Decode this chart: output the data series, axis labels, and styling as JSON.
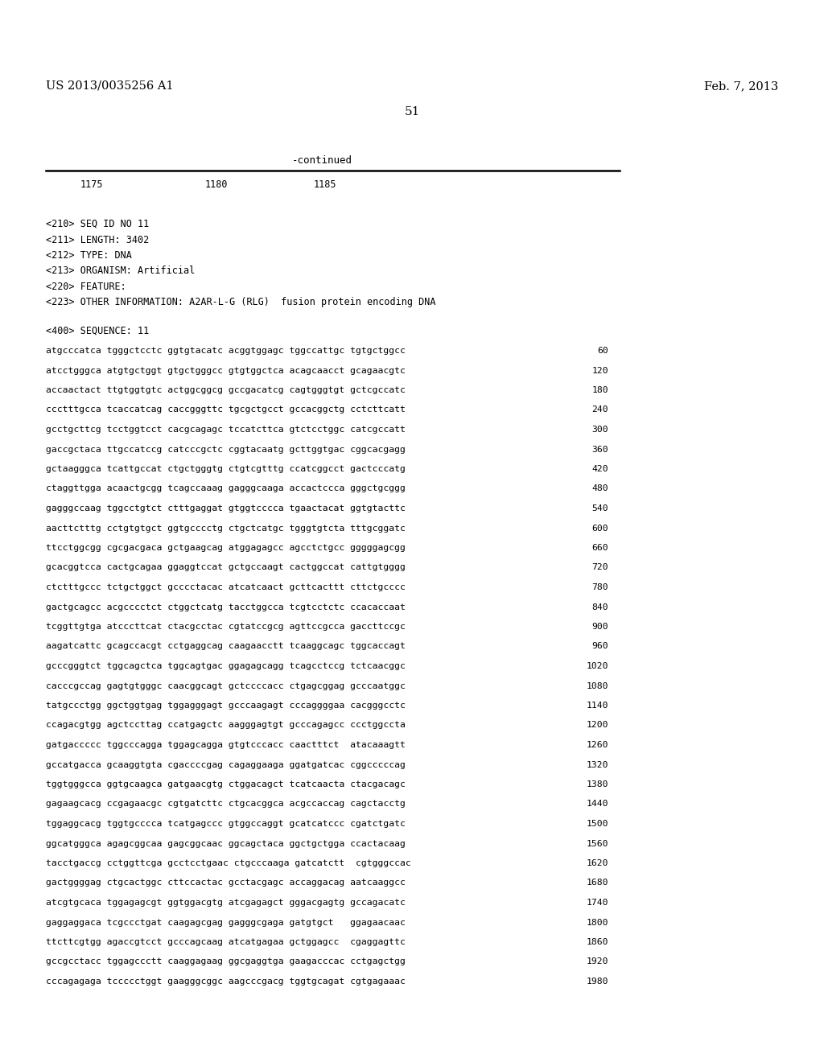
{
  "background_color": "#ffffff",
  "top_left_text": "US 2013/0035256 A1",
  "top_right_text": "Feb. 7, 2013",
  "page_number": "51",
  "continued_label": "-continued",
  "ruler_numbers": [
    "1175",
    "1180",
    "1185"
  ],
  "metadata_lines": [
    "<210> SEQ ID NO 11",
    "<211> LENGTH: 3402",
    "<212> TYPE: DNA",
    "<213> ORGANISM: Artificial",
    "<220> FEATURE:",
    "<223> OTHER INFORMATION: A2AR-L-G (RLG)  fusion protein encoding DNA"
  ],
  "sequence_label": "<400> SEQUENCE: 11",
  "sequence_lines": [
    [
      "atgcccatca tgggctcctc ggtgtacatc acggtggagc tggccattgc tgtgctggcc",
      "60"
    ],
    [
      "atcctgggca atgtgctggt gtgctgggcc gtgtggctca acagcaacct gcagaacgtc",
      "120"
    ],
    [
      "accaactact ttgtggtgtc actggcggcg gccgacatcg cagtgggtgt gctcgccatc",
      "180"
    ],
    [
      "ccctttgcca tcaccatcag caccgggttc tgcgctgcct gccacggctg cctcttcatt",
      "240"
    ],
    [
      "gcctgcttcg tcctggtcct cacgcagagc tccatcttca gtctcctggc catcgccatt",
      "300"
    ],
    [
      "gaccgctaca ttgccatccg catcccgctc cggtacaatg gcttggtgac cggcacgagg",
      "360"
    ],
    [
      "gctaagggca tcattgccat ctgctgggtg ctgtcgtttg ccatcggcct gactcccatg",
      "420"
    ],
    [
      "ctaggttgga acaactgcgg tcagccaaag gagggcaaga accactccca gggctgcggg",
      "480"
    ],
    [
      "gagggccaag tggcctgtct ctttgaggat gtggtcccca tgaactacat ggtgtacttc",
      "540"
    ],
    [
      "aacttctttg cctgtgtgct ggtgcccctg ctgctcatgc tgggtgtcta tttgcggatc",
      "600"
    ],
    [
      "ttcctggcgg cgcgacgaca gctgaagcag atggagagcc agcctctgcc gggggagcgg",
      "660"
    ],
    [
      "gcacggtcca cactgcagaa ggaggtccat gctgccaagt cactggccat cattgtgggg",
      "720"
    ],
    [
      "ctctttgccc tctgctggct gcccctacac atcatcaact gcttcacttt cttctgcccc",
      "780"
    ],
    [
      "gactgcagcc acgcccctct ctggctcatg tacctggcca tcgtcctctc ccacaccaat",
      "840"
    ],
    [
      "tcggttgtga atcccttcat ctacgcctac cgtatccgcg agttccgcca gaccttccgc",
      "900"
    ],
    [
      "aagatcattc gcagccacgt cctgaggcag caagaacctt tcaaggcagc tggcaccagt",
      "960"
    ],
    [
      "gcccgggtct tggcagctca tggcagtgac ggagagcagg tcagcctccg tctcaacggc",
      "1020"
    ],
    [
      "cacccgccag gagtgtgggc caacggcagt gctccccacc ctgagcggag gcccaatggc",
      "1080"
    ],
    [
      "tatgccctgg ggctggtgag tggagggagt gcccaagagt cccaggggaa cacgggcctc",
      "1140"
    ],
    [
      "ccagacgtgg agctccttag ccatgagctc aagggagtgt gcccagagcc ccctggccta",
      "1200"
    ],
    [
      "gatgaccccc tggcccagga tggagcagga gtgtcccacc caactttct  atacaaagtt",
      "1260"
    ],
    [
      "gccatgacca gcaaggtgta cgaccccgag cagaggaaga ggatgatcac cggcccccag",
      "1320"
    ],
    [
      "tggtgggcca ggtgcaagca gatgaacgtg ctggacagct tcatcaacta ctacgacagc",
      "1380"
    ],
    [
      "gagaagcacg ccgagaacgc cgtgatcttc ctgcacggca acgccaccag cagctacctg",
      "1440"
    ],
    [
      "tggaggcacg tggtgcccca tcatgagccc gtggccaggt gcatcatccc cgatctgatc",
      "1500"
    ],
    [
      "ggcatgggca agagcggcaa gagcggcaac ggcagctaca ggctgctgga ccactacaag",
      "1560"
    ],
    [
      "tacctgaccg cctggttcga gcctcctgaac ctgcccaaga gatcatctt  cgtgggccac",
      "1620"
    ],
    [
      "gactggggag ctgcactggc cttccactac gcctacgagc accaggacag aatcaaggcc",
      "1680"
    ],
    [
      "atcgtgcaca tggagagcgt ggtggacgtg atcgagagct gggacgagtg gccagacatc",
      "1740"
    ],
    [
      "gaggaggaca tcgccctgat caagagcgag gagggcgaga gatgtgct   ggagaacaac",
      "1800"
    ],
    [
      "ttcttcgtgg agaccgtcct gcccagcaag atcatgagaa gctggagcc  cgaggagttc",
      "1860"
    ],
    [
      "gccgcctacc tggagccctt caaggagaag ggcgaggtga gaagacccac cctgagctgg",
      "1920"
    ],
    [
      "cccagagaga tccccctggt gaagggcggc aagcccgacg tggtgcagat cgtgagaaac",
      "1980"
    ]
  ]
}
